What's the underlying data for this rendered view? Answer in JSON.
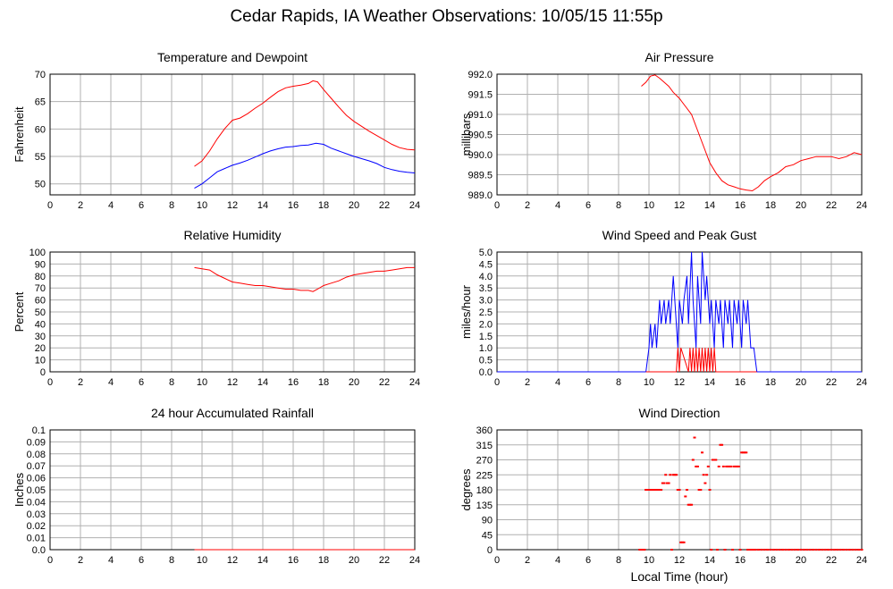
{
  "page": {
    "title": "Cedar Rapids, IA Weather Observations: 10/05/15 11:55p",
    "xlabel": "Local Time (hour)"
  },
  "colors": {
    "primary": "#ff0000",
    "secondary": "#0000ff",
    "grid": "#b0b0b0"
  },
  "chart_data": [
    {
      "id": "temp",
      "type": "line",
      "title": "Temperature and Dewpoint",
      "ylabel": "Fahrenheit",
      "xlim": [
        0,
        24
      ],
      "ylim": [
        48,
        70
      ],
      "xticks": [
        0,
        2,
        4,
        6,
        8,
        10,
        12,
        14,
        16,
        18,
        20,
        22,
        24
      ],
      "yticks": [
        50,
        55,
        60,
        65,
        70
      ],
      "ytick_labels": [
        "50",
        "55",
        "60",
        "65",
        "70"
      ],
      "grid": true,
      "series": [
        {
          "color": "#ff0000",
          "x": [
            9.5,
            10,
            10.5,
            11,
            11.5,
            12,
            12.5,
            13,
            13.5,
            14,
            14.5,
            15,
            15.5,
            16,
            16.5,
            17,
            17.3,
            17.6,
            18,
            18.5,
            19,
            19.5,
            20,
            20.5,
            21,
            21.5,
            22,
            22.5,
            23,
            23.5,
            24
          ],
          "y": [
            53.2,
            54.2,
            56.0,
            58.2,
            60.1,
            61.6,
            62.0,
            62.8,
            63.8,
            64.7,
            65.8,
            66.8,
            67.5,
            67.8,
            68.0,
            68.3,
            68.8,
            68.6,
            67.2,
            65.6,
            64.0,
            62.5,
            61.4,
            60.5,
            59.6,
            58.8,
            58.0,
            57.2,
            56.6,
            56.3,
            56.2
          ]
        },
        {
          "color": "#0000ff",
          "x": [
            9.5,
            10,
            10.5,
            11,
            11.5,
            12,
            12.5,
            13,
            13.5,
            14,
            14.5,
            15,
            15.5,
            16,
            16.5,
            17,
            17.5,
            18,
            18.5,
            19,
            19.5,
            20,
            20.5,
            21,
            21.5,
            22,
            22.5,
            23,
            23.5,
            24
          ],
          "y": [
            49.2,
            50.0,
            51.1,
            52.2,
            52.8,
            53.4,
            53.8,
            54.3,
            54.9,
            55.5,
            56.0,
            56.4,
            56.7,
            56.8,
            57.0,
            57.1,
            57.4,
            57.2,
            56.5,
            56.0,
            55.5,
            55.0,
            54.6,
            54.2,
            53.7,
            53.0,
            52.6,
            52.3,
            52.1,
            52.0
          ]
        }
      ]
    },
    {
      "id": "pressure",
      "type": "line",
      "title": "Air Pressure",
      "ylabel": "millibars",
      "xlim": [
        0,
        24
      ],
      "ylim": [
        989.0,
        992.0
      ],
      "xticks": [
        0,
        2,
        4,
        6,
        8,
        10,
        12,
        14,
        16,
        18,
        20,
        22,
        24
      ],
      "yticks": [
        989.0,
        989.5,
        990.0,
        990.5,
        991.0,
        991.5,
        992.0
      ],
      "ytick_labels": [
        "989.0",
        "989.5",
        "990.0",
        "990.5",
        "991.0",
        "991.5",
        "992.0"
      ],
      "grid": true,
      "series": [
        {
          "color": "#ff0000",
          "x": [
            9.5,
            9.8,
            10.1,
            10.4,
            10.7,
            11.0,
            11.3,
            11.6,
            12.0,
            12.4,
            12.8,
            13.2,
            13.6,
            14.0,
            14.4,
            14.8,
            15.2,
            15.6,
            16.0,
            16.4,
            16.8,
            17.2,
            17.6,
            18.0,
            18.5,
            19.0,
            19.5,
            20.0,
            20.5,
            21.0,
            21.5,
            22.0,
            22.5,
            23.0,
            23.5,
            24.0
          ],
          "y": [
            991.7,
            991.8,
            991.95,
            991.98,
            991.9,
            991.8,
            991.7,
            991.55,
            991.4,
            991.2,
            991.0,
            990.6,
            990.2,
            989.8,
            989.55,
            989.35,
            989.25,
            989.2,
            989.15,
            989.12,
            989.1,
            989.2,
            989.35,
            989.45,
            989.55,
            989.7,
            989.75,
            989.85,
            989.9,
            989.95,
            989.95,
            989.95,
            989.9,
            989.95,
            990.05,
            990.0
          ]
        }
      ]
    },
    {
      "id": "humidity",
      "type": "line",
      "title": "Relative Humidity",
      "ylabel": "Percent",
      "xlim": [
        0,
        24
      ],
      "ylim": [
        0,
        100
      ],
      "xticks": [
        0,
        2,
        4,
        6,
        8,
        10,
        12,
        14,
        16,
        18,
        20,
        22,
        24
      ],
      "yticks": [
        0,
        10,
        20,
        30,
        40,
        50,
        60,
        70,
        80,
        90,
        100
      ],
      "ytick_labels": [
        "0",
        "10",
        "20",
        "30",
        "40",
        "50",
        "60",
        "70",
        "80",
        "90",
        "100"
      ],
      "grid": true,
      "series": [
        {
          "color": "#ff0000",
          "x": [
            9.5,
            10,
            10.5,
            11,
            11.5,
            12,
            12.5,
            13,
            13.5,
            14,
            14.5,
            15,
            15.5,
            16,
            16.5,
            17,
            17.3,
            17.6,
            18,
            18.5,
            19,
            19.5,
            20,
            20.5,
            21,
            21.5,
            22,
            22.5,
            23,
            23.5,
            24
          ],
          "y": [
            87,
            86,
            85,
            81,
            78,
            75,
            74,
            73,
            72,
            72,
            71,
            70,
            69,
            69,
            68,
            68,
            67,
            69,
            72,
            74,
            76,
            79,
            81,
            82,
            83,
            84,
            84,
            85,
            86,
            87,
            87
          ]
        }
      ]
    },
    {
      "id": "wind",
      "type": "line",
      "title": "Wind Speed and Peak Gust",
      "ylabel": "miles/hour",
      "xlim": [
        0,
        24
      ],
      "ylim": [
        0,
        5
      ],
      "xticks": [
        0,
        2,
        4,
        6,
        8,
        10,
        12,
        14,
        16,
        18,
        20,
        22,
        24
      ],
      "yticks": [
        0,
        0.5,
        1,
        1.5,
        2,
        2.5,
        3,
        3.5,
        4,
        4.5,
        5
      ],
      "ytick_labels": [
        "0.0",
        "0.5",
        "1.0",
        "1.5",
        "2.0",
        "2.5",
        "3.0",
        "3.5",
        "4.0",
        "4.5",
        "5.0"
      ],
      "grid": true,
      "series": [
        {
          "color": "#0000ff",
          "x": [
            0,
            9.8,
            10.0,
            10.1,
            10.2,
            10.4,
            10.5,
            10.7,
            10.8,
            11.0,
            11.1,
            11.3,
            11.4,
            11.6,
            11.7,
            11.9,
            12.0,
            12.2,
            12.3,
            12.5,
            12.6,
            12.8,
            12.9,
            13.1,
            13.2,
            13.4,
            13.5,
            13.7,
            13.8,
            14.0,
            14.1,
            14.3,
            14.4,
            14.6,
            14.7,
            14.9,
            15.0,
            15.2,
            15.3,
            15.5,
            15.6,
            15.8,
            15.9,
            16.1,
            16.2,
            16.4,
            16.5,
            16.7,
            16.9,
            17.1,
            24
          ],
          "y": [
            0,
            0,
            1,
            2,
            1,
            2,
            1,
            3,
            2,
            3,
            2,
            3,
            2,
            4,
            3,
            1,
            3,
            2,
            3,
            4,
            2,
            5,
            3,
            1,
            4,
            2,
            5,
            3,
            4,
            2,
            3,
            1,
            3,
            2,
            3,
            1,
            3,
            2,
            3,
            1,
            3,
            2,
            3,
            1,
            3,
            2,
            3,
            1,
            1,
            0,
            0
          ]
        },
        {
          "color": "#ff0000",
          "x": [
            9.8,
            11.8,
            11.9,
            12.0,
            12.1,
            12.6,
            12.7,
            12.8,
            12.9,
            13.0,
            13.1,
            13.2,
            13.3,
            13.4,
            13.5,
            13.6,
            13.7,
            13.8,
            13.9,
            14.0,
            14.1,
            14.2,
            14.3,
            14.4,
            14.5,
            17.1
          ],
          "y": [
            0,
            0,
            1,
            0,
            1,
            0,
            1,
            0,
            1,
            0,
            1,
            0,
            1,
            0,
            1,
            0,
            1,
            0,
            1,
            0,
            1,
            0,
            1,
            0,
            0,
            0
          ]
        }
      ]
    },
    {
      "id": "rain",
      "type": "line",
      "title": "24 hour Accumulated Rainfall",
      "ylabel": "Inches",
      "xlim": [
        0,
        24
      ],
      "ylim": [
        0,
        0.1
      ],
      "xticks": [
        0,
        2,
        4,
        6,
        8,
        10,
        12,
        14,
        16,
        18,
        20,
        22,
        24
      ],
      "yticks": [
        0,
        0.01,
        0.02,
        0.03,
        0.04,
        0.05,
        0.06,
        0.07,
        0.08,
        0.09,
        0.1
      ],
      "ytick_labels": [
        "0.0",
        "0.01",
        "0.02",
        "0.03",
        "0.04",
        "0.05",
        "0.06",
        "0.07",
        "0.08",
        "0.09",
        "0.1"
      ],
      "grid": true,
      "series": [
        {
          "color": "#ff0000",
          "x": [
            9.5,
            24
          ],
          "y": [
            0,
            0
          ]
        }
      ]
    },
    {
      "id": "direction",
      "type": "scatter",
      "title": "Wind Direction",
      "ylabel": "degrees",
      "xlabel": "Local Time (hour)",
      "xlim": [
        0,
        24
      ],
      "ylim": [
        0,
        360
      ],
      "xticks": [
        0,
        2,
        4,
        6,
        8,
        10,
        12,
        14,
        16,
        18,
        20,
        22,
        24
      ],
      "yticks": [
        0,
        45,
        90,
        135,
        180,
        225,
        270,
        315,
        360
      ],
      "ytick_labels": [
        "0",
        "45",
        "90",
        "135",
        "180",
        "225",
        "270",
        "315",
        "360"
      ],
      "grid": true,
      "series": [
        {
          "color": "#ff0000",
          "x": [
            9.4,
            9.5,
            9.6,
            9.7,
            9.8,
            9.9,
            10.0,
            10.1,
            10.2,
            10.3,
            10.4,
            10.5,
            10.6,
            10.7,
            10.8,
            10.9,
            11.0,
            11.1,
            11.2,
            11.3,
            11.4,
            11.5,
            11.6,
            11.7,
            11.8,
            11.9,
            12.0,
            12.1,
            12.2,
            12.3,
            12.4,
            12.5,
            12.6,
            12.7,
            12.8,
            12.9,
            13.0,
            13.1,
            13.2,
            13.3,
            13.4,
            13.5,
            13.6,
            13.7,
            13.8,
            13.9,
            14.0,
            14.1,
            14.2,
            14.3,
            14.4,
            14.5,
            14.6,
            14.7,
            14.8,
            14.9,
            15.0,
            15.1,
            15.2,
            15.3,
            15.4,
            15.5,
            15.6,
            15.7,
            15.8,
            15.9,
            16.0,
            16.1,
            16.2,
            16.3,
            16.4,
            16.5,
            16.6,
            16.7,
            16.8,
            16.9,
            17.0,
            17.2,
            17.4,
            17.6,
            17.8,
            18.0,
            18.2,
            18.4,
            18.6,
            18.8,
            19.0,
            19.2,
            19.4,
            19.6,
            19.8,
            20.0,
            20.2,
            20.4,
            20.6,
            20.8,
            21.0,
            21.2,
            21.4,
            21.6,
            21.8,
            22.0,
            22.2,
            22.4,
            22.6,
            22.8,
            23.0,
            23.2,
            23.4,
            23.6,
            23.8,
            24.0
          ],
          "y": [
            0,
            0,
            0,
            0,
            180,
            180,
            180,
            180,
            180,
            180,
            180,
            180,
            180,
            180,
            180,
            200,
            200,
            225,
            200,
            200,
            225,
            0,
            225,
            225,
            225,
            180,
            180,
            22,
            22,
            22,
            160,
            180,
            135,
            135,
            135,
            270,
            337,
            250,
            250,
            180,
            180,
            292,
            225,
            200,
            225,
            250,
            180,
            0,
            270,
            270,
            270,
            0,
            250,
            315,
            315,
            250,
            0,
            250,
            250,
            250,
            250,
            0,
            250,
            250,
            250,
            250,
            0,
            292,
            292,
            292,
            292,
            0,
            0,
            0,
            0,
            0,
            0,
            0,
            0,
            0,
            0,
            0,
            0,
            0,
            0,
            0,
            0,
            0,
            0,
            0,
            0,
            0,
            0,
            0,
            0,
            0,
            0,
            0,
            0,
            0,
            0,
            0,
            0,
            0,
            0,
            0,
            0,
            0,
            0,
            0,
            0,
            0
          ]
        }
      ]
    }
  ]
}
